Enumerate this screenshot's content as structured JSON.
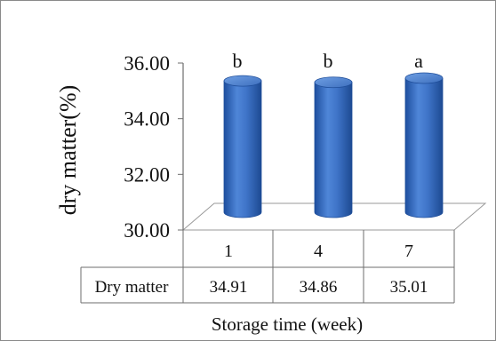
{
  "chart_data": {
    "type": "bar",
    "style": "3d-cylinder",
    "categories": [
      "1",
      "4",
      "7"
    ],
    "series": [
      {
        "name": "Dry matter",
        "values": [
          34.91,
          34.86,
          35.01
        ],
        "value_labels": [
          "34.91",
          "34.86",
          "35.01"
        ]
      }
    ],
    "significance_letters": [
      "b",
      "b",
      "a"
    ],
    "ylabel": "dry matter(%)",
    "xlabel": "Storage time (week)",
    "ylim": [
      30,
      36
    ],
    "yticks": [
      "30.00",
      "32.00",
      "34.00",
      "36.00"
    ],
    "grid": false,
    "legend": "none",
    "data_table": true,
    "bar_color": "#3a6fc4",
    "bar_edge_color": "#1f4e9a"
  }
}
